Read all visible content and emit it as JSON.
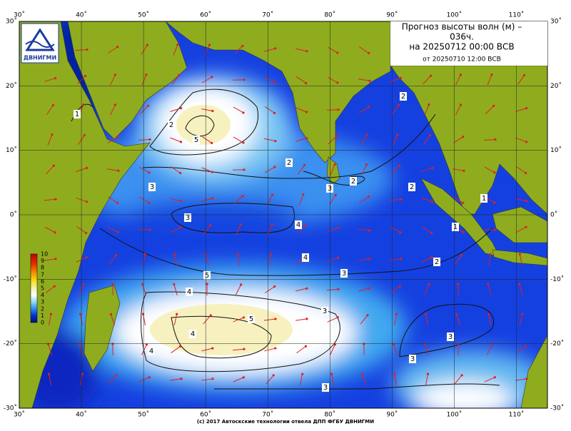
{
  "map": {
    "title": [
      "Прогноз высоты волн (м) –",
      "036ч.",
      "на 20250712 00:00 ВСВ"
    ],
    "issued": "от 20250710 12:00 ВСВ",
    "logo": "ДВНИГМИ",
    "footer": "(c) 2017 Автоскские технологии отвела ДПП ФГБУ ДВНИГМИ",
    "lon_ticks": [
      {
        "value": 30,
        "label": "30˚"
      },
      {
        "value": 40,
        "label": "40˚"
      },
      {
        "value": 50,
        "label": "50˚"
      },
      {
        "value": 60,
        "label": "60˚"
      },
      {
        "value": 70,
        "label": "70˚"
      },
      {
        "value": 80,
        "label": "80˚"
      },
      {
        "value": 90,
        "label": "90˚"
      },
      {
        "value": 100,
        "label": "100˚"
      },
      {
        "value": 110,
        "label": "110˚"
      }
    ],
    "lat_ticks": [
      {
        "value": 30,
        "label": "30˚"
      },
      {
        "value": 20,
        "label": "20˚"
      },
      {
        "value": 10,
        "label": "10˚"
      },
      {
        "value": 0,
        "label": "0˚"
      },
      {
        "value": -10,
        "label": "-10˚"
      },
      {
        "value": -20,
        "label": "-20˚"
      },
      {
        "value": -30,
        "label": "-30˚"
      }
    ],
    "colorbar_labels": [
      10,
      9,
      8,
      7,
      6,
      5,
      4,
      3,
      2,
      1,
      0
    ],
    "contour_labels": [
      "1",
      "2",
      "2",
      "3",
      "3",
      "3",
      "4",
      "4",
      "5",
      "2",
      "2",
      "3",
      "3",
      "2",
      "1",
      "1",
      "4",
      "5",
      "5",
      "4",
      "4",
      "3",
      "3",
      "3",
      "2"
    ]
  }
}
